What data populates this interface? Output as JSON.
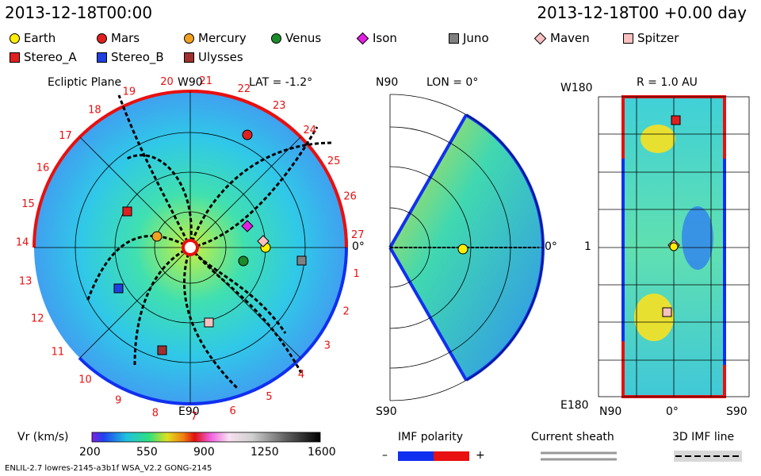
{
  "header": {
    "left_time": "2013-12-18T00:00",
    "right_time": "2013-12-18T00 +0.00 day"
  },
  "legend": [
    {
      "label": "Earth",
      "shape": "circle",
      "color": "#ffee00"
    },
    {
      "label": "Mars",
      "shape": "circle",
      "color": "#e02020"
    },
    {
      "label": "Mercury",
      "shape": "circle",
      "color": "#f0a020"
    },
    {
      "label": "Venus",
      "shape": "circle",
      "color": "#1a8a2a"
    },
    {
      "label": "Ison",
      "shape": "diamond",
      "color": "#e020e0"
    },
    {
      "label": "Juno",
      "shape": "square",
      "color": "#808080"
    },
    {
      "label": "Maven",
      "shape": "diamond",
      "color": "#f8c0c0"
    },
    {
      "label": "Spitzer",
      "shape": "square",
      "color": "#f8c0c0"
    },
    {
      "label": "Stereo_A",
      "shape": "square",
      "color": "#e02020"
    },
    {
      "label": "Stereo_B",
      "shape": "square",
      "color": "#2040e0"
    },
    {
      "label": "Ulysses",
      "shape": "square",
      "color": "#a03030"
    }
  ],
  "panels": {
    "ecliptic": {
      "title": "Ecliptic Plane",
      "top": "W90",
      "bottom": "E90",
      "lat": "LAT = -1.2°",
      "right": "0°"
    },
    "meridional": {
      "top": "N90",
      "lon": "LON = 0°",
      "bottom": "S90",
      "right": "0°"
    },
    "sphere": {
      "top_left": "W180",
      "r": "R = 1.0 AU",
      "mid_left": "1",
      "bottom_left": "E180",
      "bottom_n": "N90",
      "bottom_mid": "0°",
      "bottom_s": "S90"
    }
  },
  "chart_data": [
    {
      "type": "heatmap",
      "title": "Ecliptic Plane",
      "colorbar": {
        "label": "Vr (km/s)",
        "min": 200,
        "max": 1600,
        "ticks": [
          200,
          550,
          900,
          1250,
          1600
        ]
      },
      "carrington_rotation_ticks": [
        "20",
        "21",
        "22",
        "23",
        "24",
        "25",
        "26",
        "27",
        "1",
        "2",
        "3",
        "4",
        "5",
        "6",
        "7",
        "8",
        "9",
        "10",
        "11",
        "12",
        "13",
        "14",
        "15",
        "16",
        "17",
        "18",
        "19"
      ]
    }
  ],
  "footer": {
    "imf_title": "IMF polarity",
    "imf_minus": "–",
    "imf_plus": "+",
    "sheath_title": "Current sheath",
    "imf3d_title": "3D IMF line",
    "model_info": "ENLIL-2.7 lowres-2145-a3b1f WSA_V2.2 GONG-2145"
  },
  "colors": {
    "positive": "#e81010",
    "negative": "#1030f0"
  }
}
